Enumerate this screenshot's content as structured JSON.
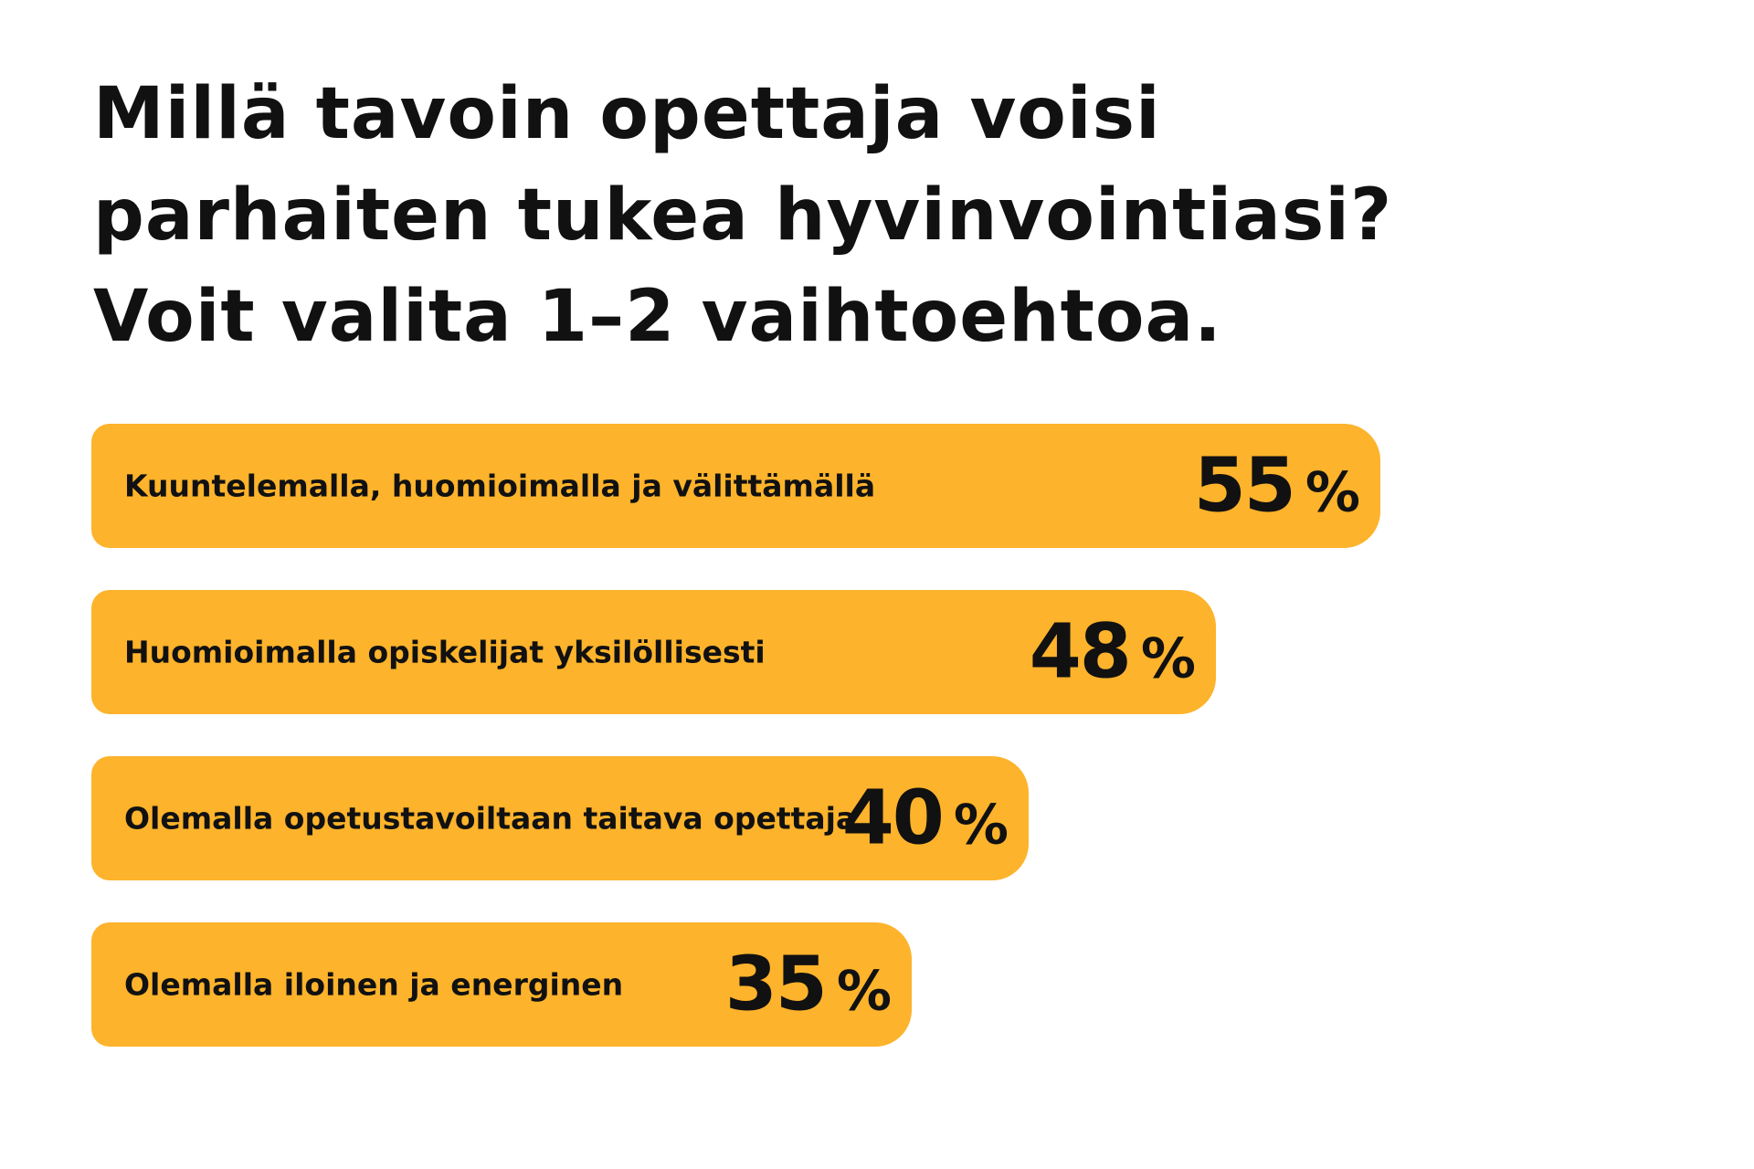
{
  "chart_data": {
    "type": "bar",
    "orientation": "horizontal",
    "title_lines": [
      "Millä tavoin opettaja voisi",
      "parhaiten tukea hyvinvointiasi?",
      "Voit valita 1–2 vaihtoehtoa."
    ],
    "categories": [
      "Kuuntelemalla, huomioimalla ja välittämällä",
      "Huomioimalla opiskelijat yksilöllisesti",
      "Olemalla opetustavoiltaan taitava opettaja",
      "Olemalla iloinen ja energinen"
    ],
    "values": [
      55,
      48,
      40,
      35
    ],
    "value_unit": "%",
    "bar_color": "#fdb32b",
    "text_color": "#111111",
    "grid": false,
    "legend": "none"
  }
}
